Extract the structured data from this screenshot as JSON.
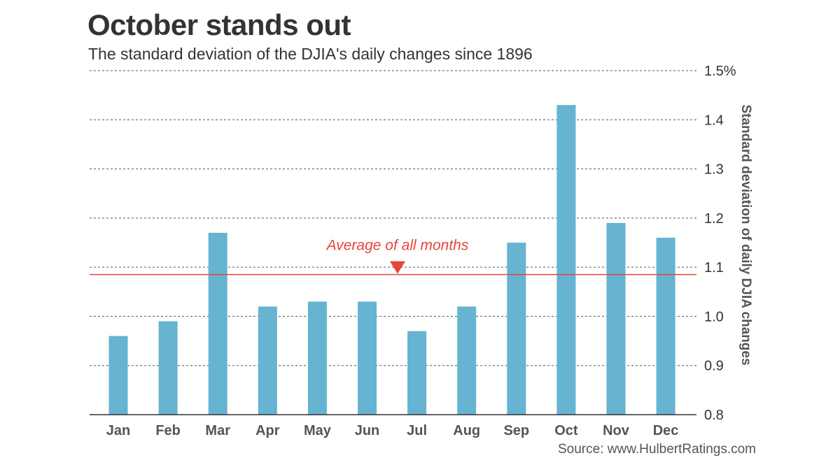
{
  "chart_data": {
    "type": "bar",
    "title": "October stands out",
    "subtitle": "The standard deviation of the DJIA's daily changes since 1896",
    "categories": [
      "Jan",
      "Feb",
      "Mar",
      "Apr",
      "May",
      "Jun",
      "Jul",
      "Aug",
      "Sep",
      "Oct",
      "Nov",
      "Dec"
    ],
    "values": [
      0.96,
      0.99,
      1.17,
      1.02,
      1.03,
      1.03,
      0.97,
      1.02,
      1.15,
      1.43,
      1.19,
      1.16
    ],
    "xlabel": "",
    "ylabel": "Standard deviation of daily DJIA changes",
    "ylim": [
      0.8,
      1.5
    ],
    "yticks": [
      0.8,
      0.9,
      1.0,
      1.1,
      1.2,
      1.3,
      1.4,
      1.5
    ],
    "ytick_labels": [
      "0.8",
      "0.9",
      "1.0",
      "1.1",
      "1.2",
      "1.3",
      "1.4",
      "1.5%"
    ],
    "y_axis_side": "right",
    "grid": true,
    "average_line": {
      "value": 1.085,
      "label": "Average of all months",
      "color": "#e8443a"
    },
    "bar_color": "#66b3d2",
    "source": "Source: www.HulbertRatings.com"
  }
}
